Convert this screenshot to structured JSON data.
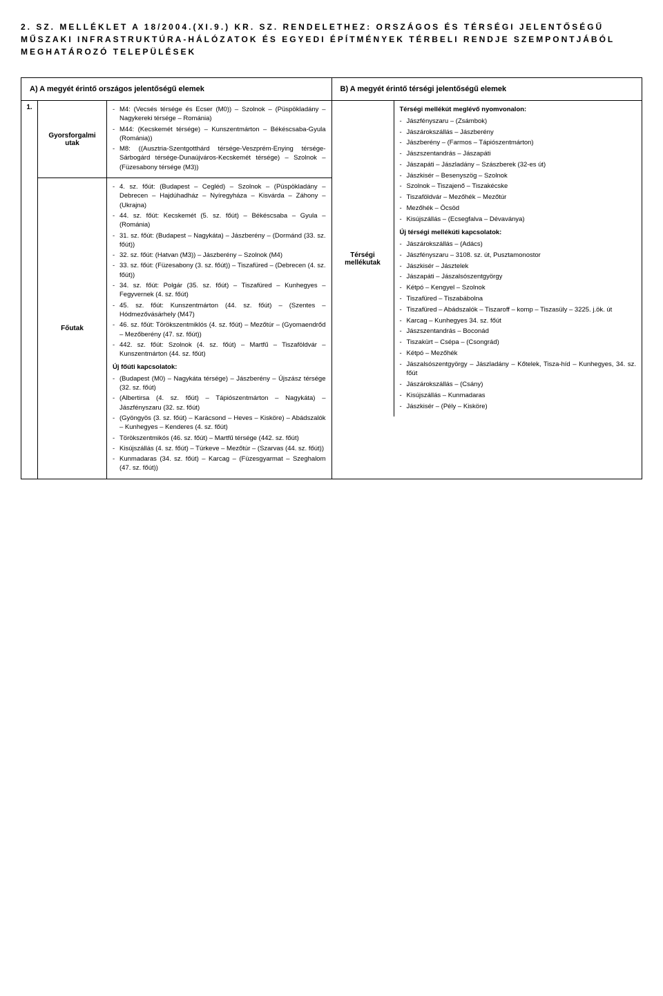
{
  "title": "2. SZ. MELLÉKLET A 18/2004.(XI.9.) KR. SZ. RENDELETHEZ: ORSZÁGOS ÉS TÉRSÉGI JELENTŐSÉGŰ MŰSZAKI INFRASTRUKTÚRA-HÁLÓZATOK ÉS EGYEDI ÉPÍTMÉNYEK TÉRBELI RENDJE SZEMPONTJÁBÓL MEGHATÁROZÓ TELEPÜLÉSEK",
  "header_a": "A) A megyét érintő országos jelentőségű elemek",
  "header_b": "B) A megyét érintő térségi jelentőségű elemek",
  "row_num": "1.",
  "labels": {
    "gyors": "Gyorsforgalmi utak",
    "foutak": "Főutak",
    "tersegi": "Térségi mellékutak"
  },
  "gyors_items": [
    "M4: (Vecsés térsége és Ecser (M0)) – Szolnok – (Püspökladány – Nagykereki térsége – Románia)",
    "M44: (Kecskemét térsége) – Kunszentmárton – Békéscsaba-Gyula (Románia))",
    "M8: ((Ausztria-Szentgotthárd térsége-Veszprém-Enying térsége-Sárbogárd térsége-Dunaújváros-Kecskemét térsége) – Szolnok – (Füzesabony térsége (M3))"
  ],
  "foutak_items": [
    "4. sz. főút: (Budapest – Cegléd) – Szolnok – (Püspökladány – Debrecen – Hajdúhadház – Nyíregyháza – Kisvárda – Záhony – (Ukrajna)",
    "44. sz. főút: Kecskemét (5. sz. főút) – Békéscsaba – Gyula – (Románia)",
    "31. sz. főút: (Budapest – Nagykáta) – Jászberény – (Dormánd (33. sz. főút))",
    "32. sz. főút: (Hatvan (M3)) – Jászberény – Szolnok (M4)",
    "33. sz. főút: (Füzesabony (3. sz. főút)) – Tiszafüred – (Debrecen (4. sz. főút))",
    "34. sz. főút: Polgár (35. sz. főút) – Tiszafüred – Kunhegyes – Fegyvernek (4. sz. főút)",
    "45. sz. főút: Kunszentmárton (44. sz. főút) – (Szentes – Hódmezővásárhely (M47)",
    "46. sz. főút: Törökszentmiklós (4. sz. főút) – Mezőtúr – (Gyomaendrőd – Mezőberény (47. sz. főút))",
    "442. sz. főút: Szolnok (4. sz. főút) – Martfű – Tiszaföldvár – Kunszentmárton (44. sz. főút)"
  ],
  "uj_fouti_heading": "Új főúti kapcsolatok:",
  "uj_fouti_items": [
    "(Budapest (M0) – Nagykáta térsége) – Jászberény – Újszász térsége (32. sz. főút)",
    "(Albertirsa (4. sz. főút) – Tápiószentmárton – Nagykáta) – Jászfényszaru (32. sz. főút)",
    "(Gyöngyös (3. sz. főút) – Karácsond – Heves – Kisköre) – Abádszalók – Kunhegyes – Kenderes (4. sz. főút)",
    "Törökszentmikós (46. sz. főút) – Martfű térsége (442. sz. főút)",
    "Kisújszállás (4. sz. főút) – Túrkeve – Mezőtúr – (Szarvas (44. sz. főút))",
    "Kunmadaras (34. sz. főút) – Karcag – (Füzesgyarmat – Szeghalom (47. sz. főút))"
  ],
  "tersegi_heading1": "Térségi mellékút meglévő nyomvonalon:",
  "tersegi_items1": [
    "Jászfényszaru – (Zsámbok)",
    "Jászárokszállás – Jászberény",
    "Jászberény – (Farmos – Tápiószentmárton)",
    "Jászszentandrás – Jászapáti",
    "Jászapáti – Jászladány – Szászberek (32-es út)",
    "Jászkisér – Besenyszög – Szolnok",
    "Szolnok – Tiszajenő – Tiszakécske",
    "Tiszaföldvár – Mezőhék – Mezőtúr",
    "Mezőhék – Öcsöd",
    "Kisújszállás – (Ecsegfalva – Dévaványa)"
  ],
  "tersegi_heading2": "Új térségi mellékúti kapcsolatok:",
  "tersegi_items2": [
    "Jászárokszállás – (Adács)",
    "Jászfényszaru – 3108. sz. út, Pusztamonostor",
    "Jászkisér – Jásztelek",
    "Jászapáti – Jászalsószentgyörgy",
    "Kétpó – Kengyel – Szolnok",
    "Tiszafüred – Tiszabábolna",
    "Tiszafüred – Abádszalók – Tiszaroff – komp – Tiszasüly – 3225. j.ök. út",
    "Karcag – Kunhegyes 34. sz. főút",
    "Jászszentandrás – Boconád",
    "Tiszakürt – Csépa – (Csongrád)",
    "Kétpó – Mezőhék",
    "Jászalsószentgyörgy – Jászladány – Kőtelek, Tisza-híd – Kunhegyes, 34. sz. főút",
    "Jászárokszállás – (Csány)",
    "Kisújszállás – Kunmadaras",
    "Jászkisér – (Pély – Kisköre)"
  ]
}
